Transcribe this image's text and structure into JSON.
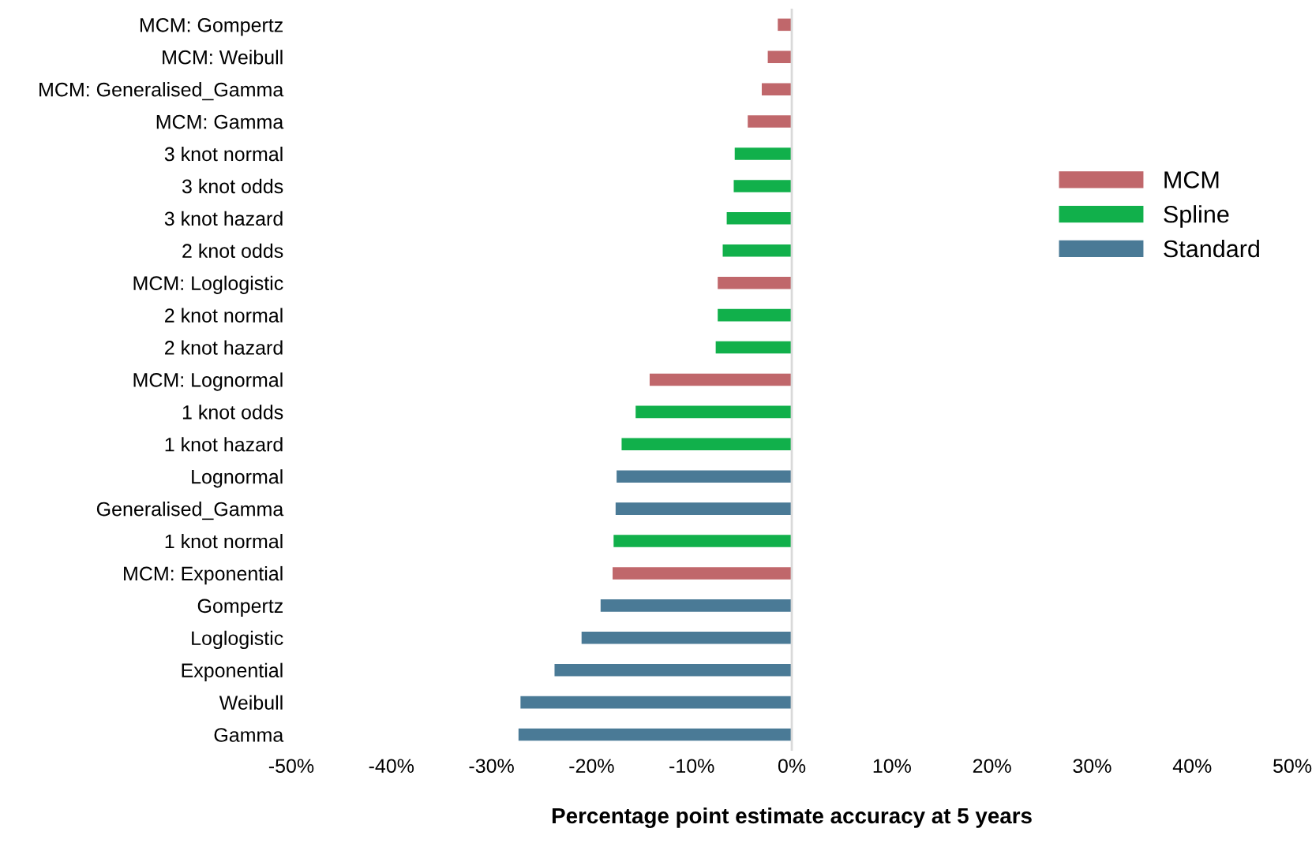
{
  "chart_data": {
    "type": "bar",
    "orientation": "horizontal",
    "xlabel": "Percentage point estimate accuracy at 5 years",
    "categories": [
      "MCM: Gompertz",
      "MCM: Weibull",
      "MCM: Generalised_Gamma",
      "MCM: Gamma",
      "3 knot normal",
      "3 knot odds",
      "3 knot hazard",
      "2 knot odds",
      "MCM: Loglogistic",
      "2 knot normal",
      "2 knot hazard",
      "MCM: Lognormal",
      "1 knot odds",
      "1 knot hazard",
      "Lognormal",
      "Generalised_Gamma",
      "1 knot normal",
      "MCM: Exponential",
      "Gompertz",
      "Loglogistic",
      "Exponential",
      "Weibull",
      "Gamma"
    ],
    "series": [
      {
        "name": "MCM",
        "color": "#c0676b",
        "values": [
          -1.4,
          -2.4,
          -3.0,
          -4.4,
          null,
          null,
          null,
          null,
          -7.4,
          null,
          null,
          -14.2,
          null,
          null,
          null,
          null,
          null,
          -17.9,
          null,
          null,
          null,
          null,
          null
        ]
      },
      {
        "name": "Spline",
        "color": "#11b04b",
        "values": [
          null,
          null,
          null,
          null,
          -5.7,
          -5.8,
          -6.5,
          -6.9,
          null,
          -7.4,
          -7.6,
          null,
          -15.6,
          -17.0,
          null,
          null,
          -17.8,
          null,
          null,
          null,
          null,
          null,
          null
        ]
      },
      {
        "name": "Standard",
        "color": "#4a7a96",
        "values": [
          null,
          null,
          null,
          null,
          null,
          null,
          null,
          null,
          null,
          null,
          null,
          null,
          null,
          null,
          -17.5,
          -17.6,
          null,
          null,
          -19.1,
          -21.0,
          -23.7,
          -27.1,
          -27.3
        ]
      }
    ],
    "xlim": [
      -50,
      50
    ],
    "xticks": [
      {
        "value": -50,
        "label": "-50%"
      },
      {
        "value": -40,
        "label": "-40%"
      },
      {
        "value": -30,
        "label": "-30%"
      },
      {
        "value": -20,
        "label": "-20%"
      },
      {
        "value": -10,
        "label": "-10%"
      },
      {
        "value": 0,
        "label": "0%"
      },
      {
        "value": 10,
        "label": "10%"
      },
      {
        "value": 20,
        "label": "20%"
      },
      {
        "value": 30,
        "label": "30%"
      },
      {
        "value": 40,
        "label": "40%"
      },
      {
        "value": 50,
        "label": "50%"
      }
    ],
    "ref_lines": [
      {
        "axis": "x",
        "value": 0,
        "color": "#d9d9d9"
      }
    ],
    "legend": "center right"
  }
}
